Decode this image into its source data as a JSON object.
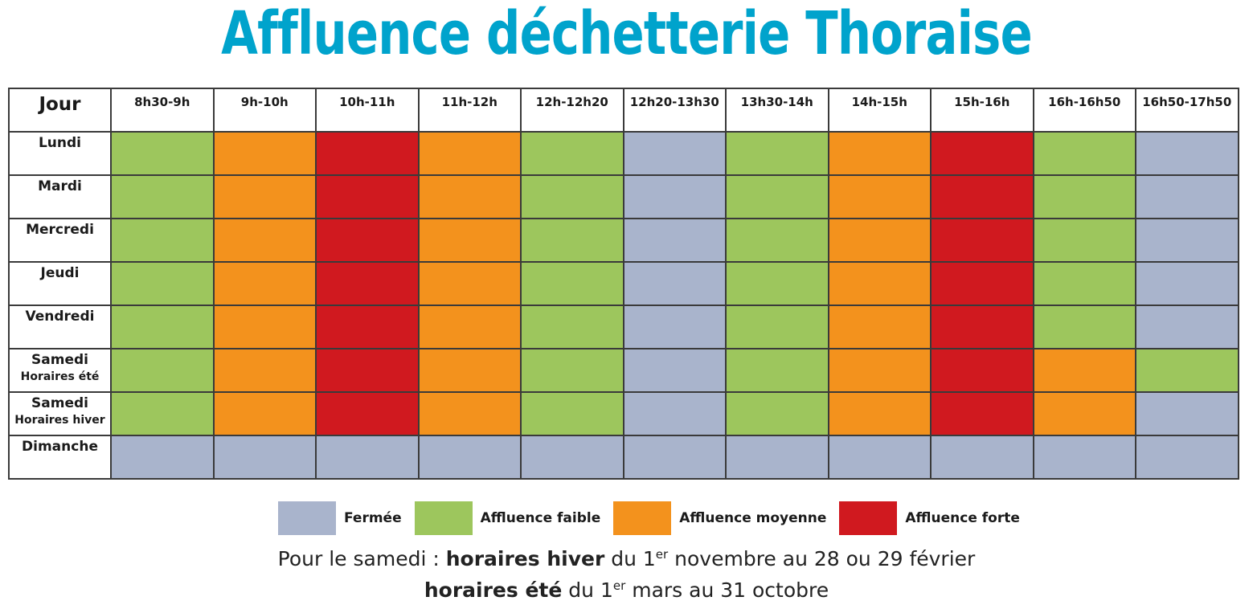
{
  "title": "Affluence déchetterie Thoraise",
  "colors": {
    "closed": "#a9b4cc",
    "low": "#9dc65d",
    "medium": "#f3921d",
    "high": "#d0191f"
  },
  "chart_data": {
    "type": "heatmap",
    "title": "Affluence déchetterie Thoraise",
    "corner_label": "Jour",
    "columns": [
      "8h30-9h",
      "9h-10h",
      "10h-11h",
      "11h-12h",
      "12h-12h20",
      "12h20-13h30",
      "13h30-14h",
      "14h-15h",
      "15h-16h",
      "16h-16h50",
      "16h50-17h50"
    ],
    "rows": [
      {
        "label": "Lundi",
        "sublabel": "",
        "values": [
          "low",
          "medium",
          "high",
          "medium",
          "low",
          "closed",
          "low",
          "medium",
          "high",
          "low",
          "closed"
        ]
      },
      {
        "label": "Mardi",
        "sublabel": "",
        "values": [
          "low",
          "medium",
          "high",
          "medium",
          "low",
          "closed",
          "low",
          "medium",
          "high",
          "low",
          "closed"
        ]
      },
      {
        "label": "Mercredi",
        "sublabel": "",
        "values": [
          "low",
          "medium",
          "high",
          "medium",
          "low",
          "closed",
          "low",
          "medium",
          "high",
          "low",
          "closed"
        ]
      },
      {
        "label": "Jeudi",
        "sublabel": "",
        "values": [
          "low",
          "medium",
          "high",
          "medium",
          "low",
          "closed",
          "low",
          "medium",
          "high",
          "low",
          "closed"
        ]
      },
      {
        "label": "Vendredi",
        "sublabel": "",
        "values": [
          "low",
          "medium",
          "high",
          "medium",
          "low",
          "closed",
          "low",
          "medium",
          "high",
          "low",
          "closed"
        ]
      },
      {
        "label": "Samedi",
        "sublabel": "Horaires été",
        "values": [
          "low",
          "medium",
          "high",
          "medium",
          "low",
          "closed",
          "low",
          "medium",
          "high",
          "medium",
          "low"
        ]
      },
      {
        "label": "Samedi",
        "sublabel": "Horaires hiver",
        "values": [
          "low",
          "medium",
          "high",
          "medium",
          "low",
          "closed",
          "low",
          "medium",
          "high",
          "medium",
          "closed"
        ]
      },
      {
        "label": "Dimanche",
        "sublabel": "",
        "values": [
          "closed",
          "closed",
          "closed",
          "closed",
          "closed",
          "closed",
          "closed",
          "closed",
          "closed",
          "closed",
          "closed"
        ]
      }
    ],
    "legend": [
      {
        "key": "closed",
        "label": "Fermée"
      },
      {
        "key": "low",
        "label": "Affluence faible"
      },
      {
        "key": "medium",
        "label": "Affluence moyenne"
      },
      {
        "key": "high",
        "label": "Affluence forte"
      }
    ]
  },
  "note": {
    "line1_prefix": "Pour le samedi : ",
    "line1_bold": "horaires hiver",
    "line1_mid": " du 1",
    "line1_sup": "er",
    "line1_suffix": " novembre au 28 ou 29 février",
    "line2_bold": "horaires été",
    "line2_mid": " du 1",
    "line2_sup": "er",
    "line2_suffix": " mars au 31 octobre"
  }
}
